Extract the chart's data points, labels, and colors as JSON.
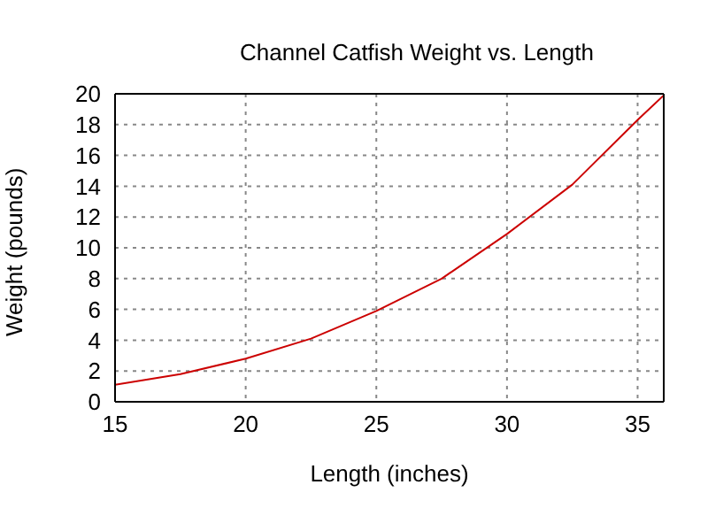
{
  "chart_data": {
    "type": "line",
    "title": "Channel Catfish Weight vs. Length",
    "xlabel": "Length (inches)",
    "ylabel": "Weight (pounds)",
    "x": [
      15,
      17.5,
      20,
      22.5,
      25,
      27.5,
      30,
      32.5,
      35,
      36
    ],
    "series": [
      {
        "color": "#cc0000",
        "values": [
          1.1,
          1.8,
          2.8,
          4.1,
          5.9,
          8.0,
          10.9,
          14.1,
          18.3,
          19.9
        ]
      }
    ],
    "xlim": [
      15,
      36
    ],
    "xticks": [
      15,
      20,
      25,
      30,
      35
    ],
    "ylim": [
      0,
      20
    ],
    "yticks": [
      0,
      2,
      4,
      6,
      8,
      10,
      12,
      14,
      16,
      18,
      20
    ],
    "grid": true,
    "marker": "none",
    "line_style": "solid"
  }
}
